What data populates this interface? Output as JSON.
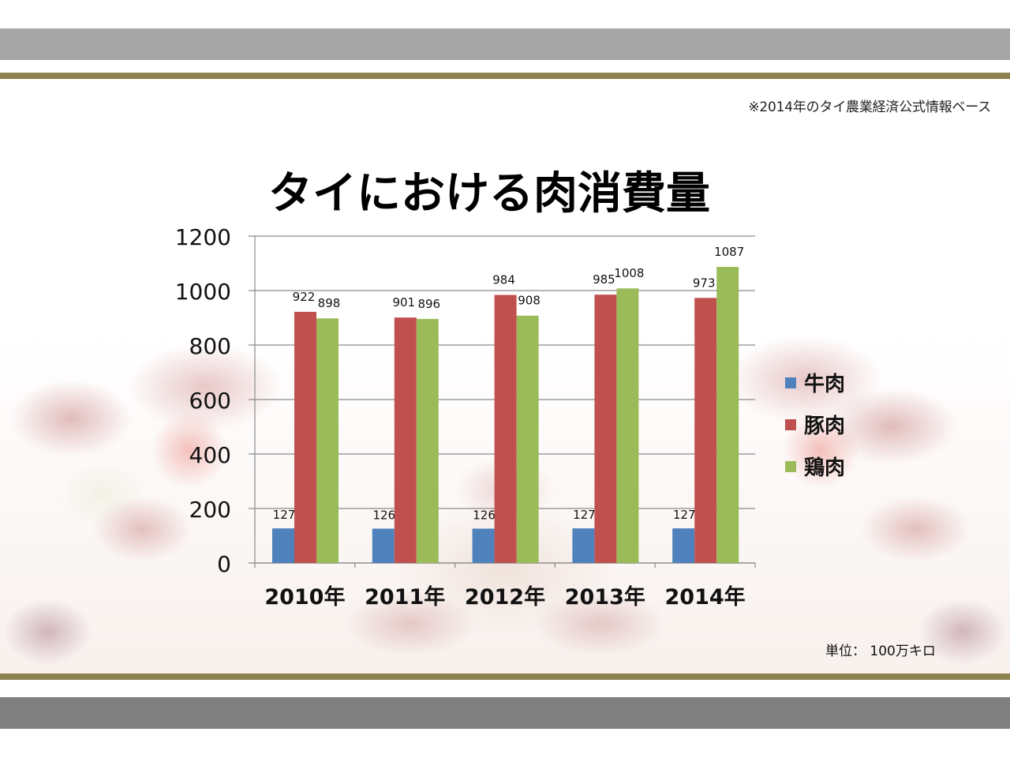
{
  "source_note": "※2014年のタイ農業経済公式情報ベース",
  "unit_note": "単位： 100万キロ",
  "chart_data": {
    "type": "bar",
    "title": "タイにおける肉消費量",
    "categories": [
      "2010年",
      "2011年",
      "2012年",
      "2013年",
      "2014年"
    ],
    "series": [
      {
        "name": "牛肉",
        "color": "#4f81bd",
        "values": [
          127,
          126,
          126,
          127,
          127
        ]
      },
      {
        "name": "豚肉",
        "color": "#c0504d",
        "values": [
          922,
          901,
          984,
          985,
          973
        ]
      },
      {
        "name": "鶏肉",
        "color": "#9bbb59",
        "values": [
          898,
          896,
          908,
          1008,
          1087
        ]
      }
    ],
    "ylim": [
      0,
      1200
    ],
    "yticks": [
      "0",
      "200",
      "400",
      "600",
      "800",
      "1000",
      "1200"
    ],
    "grid": true,
    "legend": "right"
  }
}
